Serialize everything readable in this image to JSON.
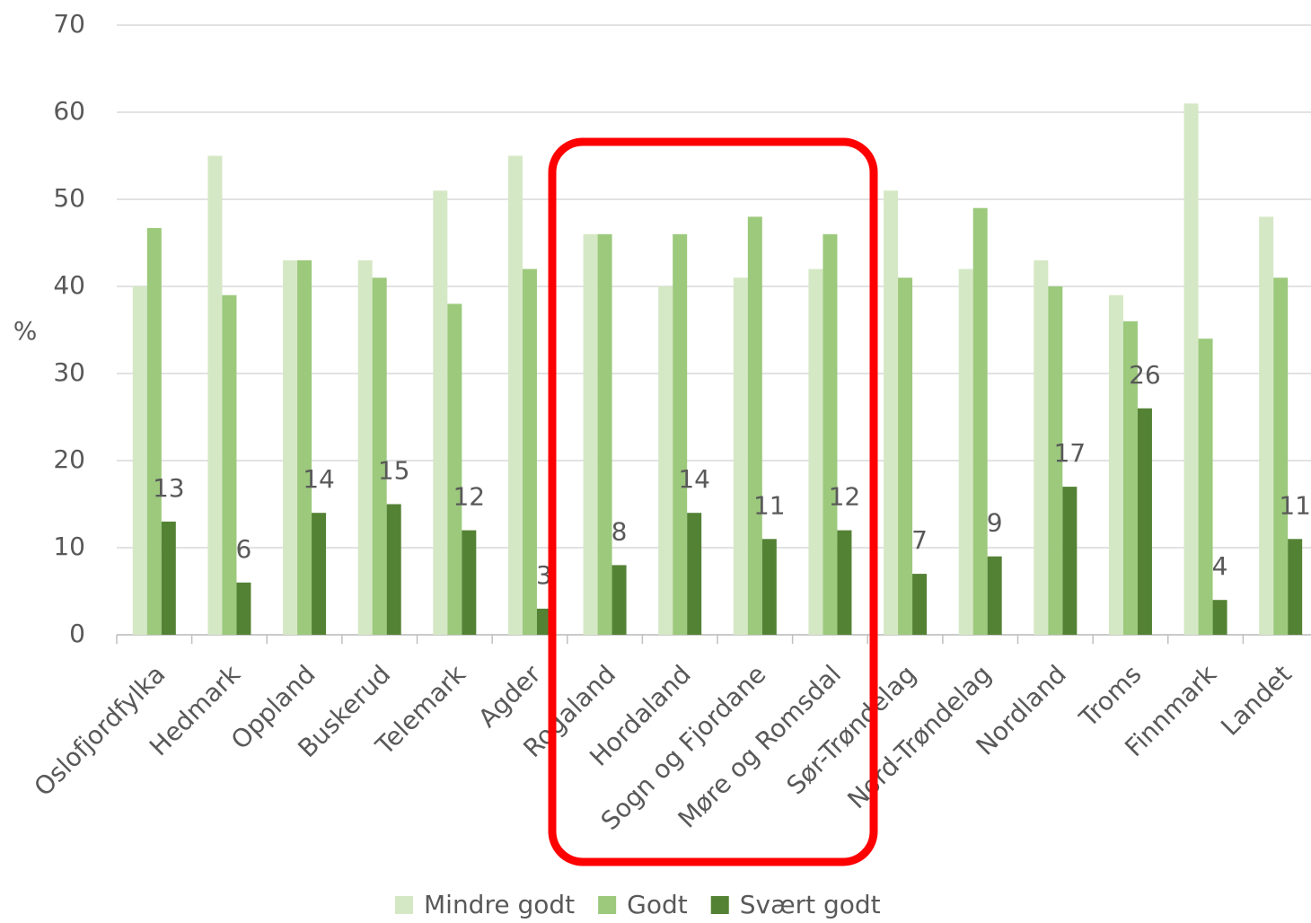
{
  "chart_data": {
    "type": "bar",
    "y_label": "%",
    "categories": [
      "Oslofjordfylka",
      "Hedmark",
      "Oppland",
      "Buskerud",
      "Telemark",
      "Agder",
      "Rogaland",
      "Hordaland",
      "Sogn og Fjordane",
      "Møre og Romsdal",
      "Sør-Trøndelag",
      "Nord-Trøndelag",
      "Nordland",
      "Troms",
      "Finnmark",
      "Landet"
    ],
    "series": [
      {
        "name": "Mindre godt",
        "color": "#d5e8c5",
        "values": [
          40,
          55,
          43,
          43,
          51,
          55,
          46,
          40,
          41,
          42,
          51,
          42,
          43,
          39,
          61,
          48
        ]
      },
      {
        "name": "Godt",
        "color": "#9cc97c",
        "values": [
          46.7,
          39,
          43,
          41,
          38,
          42,
          46,
          46,
          48,
          46,
          41,
          49,
          40,
          36,
          34,
          41
        ]
      },
      {
        "name": "Svært godt",
        "color": "#548235",
        "values": [
          13,
          6,
          14,
          15,
          12,
          3,
          8,
          14,
          11,
          12,
          7,
          9,
          17,
          26,
          4,
          11
        ],
        "data_labels": true
      }
    ],
    "ylim": [
      0,
      70
    ],
    "yticks": [
      0,
      10,
      20,
      30,
      40,
      50,
      60,
      70
    ],
    "grid": true,
    "legend": "bottom"
  }
}
